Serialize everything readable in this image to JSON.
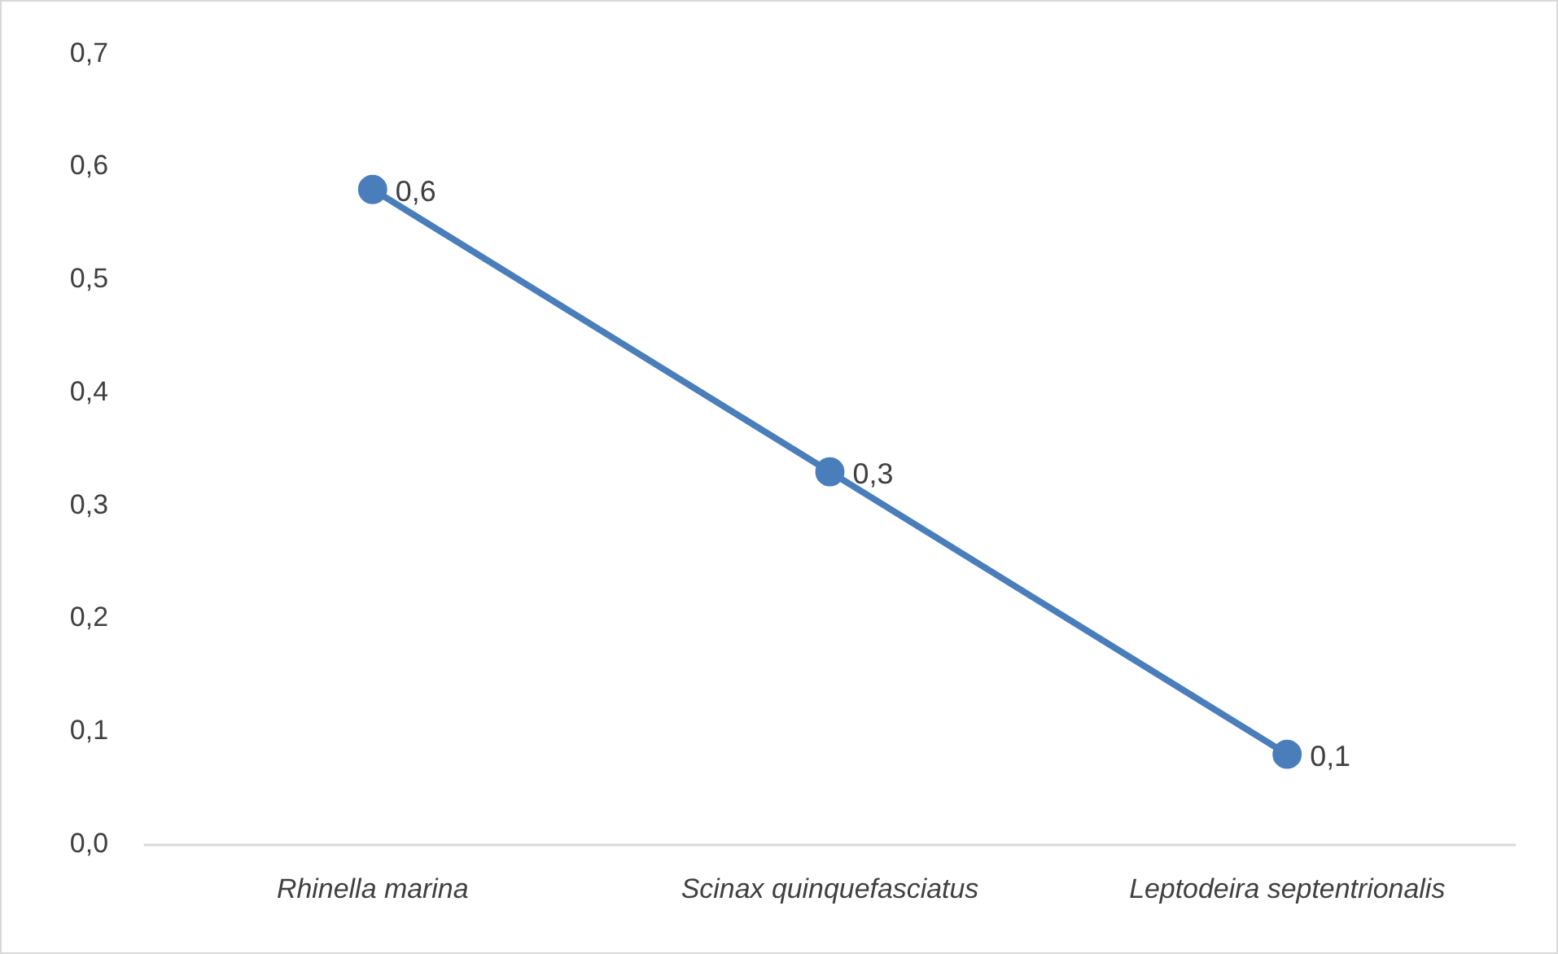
{
  "chart_data": {
    "type": "line",
    "categories": [
      "Rhinella marina",
      "Scinax quinquefasciatus",
      "Leptodeira septentrionalis"
    ],
    "series": [
      {
        "color": "#4a7ebb",
        "values": [
          0.58,
          0.33,
          0.08
        ],
        "value_labels": [
          "0,6",
          "0,3",
          "0,1"
        ]
      }
    ],
    "ylim": [
      0,
      0.7
    ],
    "yticks": [
      {
        "value": 0,
        "label": "0,0"
      },
      {
        "value": 0.1,
        "label": "0,1"
      },
      {
        "value": 0.2,
        "label": "0,2"
      },
      {
        "value": 0.3,
        "label": "0,3"
      },
      {
        "value": 0.4,
        "label": "0,4"
      },
      {
        "value": 0.5,
        "label": "0,5"
      },
      {
        "value": 0.6,
        "label": "0,6"
      },
      {
        "value": 0.7,
        "label": "0,7"
      }
    ],
    "grid": false,
    "legend": false,
    "marker": "circle",
    "line_style": "solid"
  }
}
